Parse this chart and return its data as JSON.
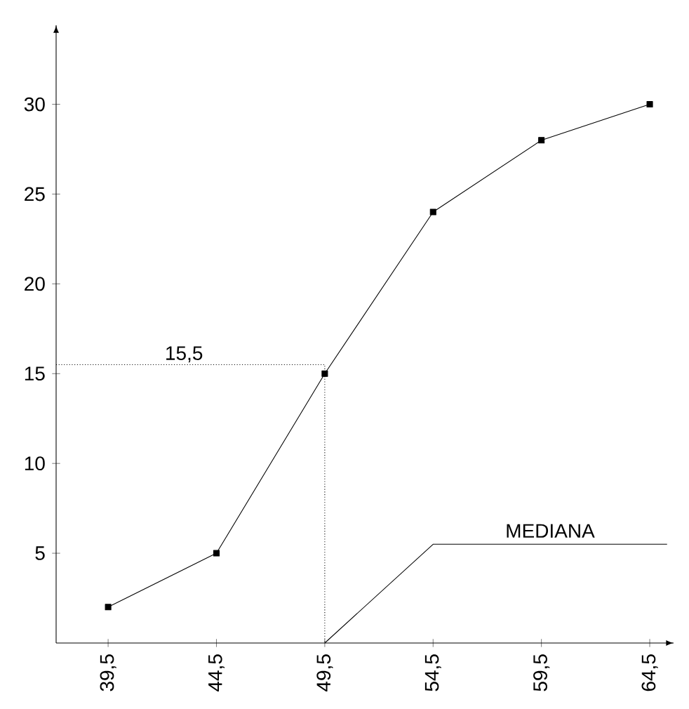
{
  "chart_data": {
    "type": "line",
    "x": [
      39.5,
      44.5,
      49.5,
      54.5,
      59.5,
      64.5
    ],
    "series": [
      {
        "color": "#000000",
        "values": [
          2,
          5,
          15,
          24,
          28,
          30
        ]
      },
      {
        "color": "#000000",
        "x": [
          37.1,
          49.5,
          49.5
        ],
        "values": [
          15.5,
          15.5,
          0
        ],
        "line_style": "dotted",
        "marker": "none"
      },
      {
        "name": "MEDIANA",
        "color": "#000000",
        "x": [
          49.5,
          54.5,
          65.3
        ],
        "values": [
          0,
          5.5,
          5.5
        ],
        "marker": "none"
      }
    ],
    "xlim": [
      37.1,
      65.6
    ],
    "ylim": [
      0,
      34.4
    ],
    "xticks": [
      {
        "value": 39.5,
        "label": "39,5"
      },
      {
        "value": 44.5,
        "label": "44,5"
      },
      {
        "value": 49.5,
        "label": "49,5"
      },
      {
        "value": 54.5,
        "label": "54,5"
      },
      {
        "value": 59.5,
        "label": "59,5"
      },
      {
        "value": 64.5,
        "label": "64,5"
      }
    ],
    "yticks": [
      5,
      10,
      15,
      20,
      25,
      30
    ],
    "marker": "square",
    "line_style": "solid",
    "grid": false,
    "annotations": [
      {
        "text": "15,5",
        "x": 43,
        "y": 15.5
      }
    ]
  }
}
